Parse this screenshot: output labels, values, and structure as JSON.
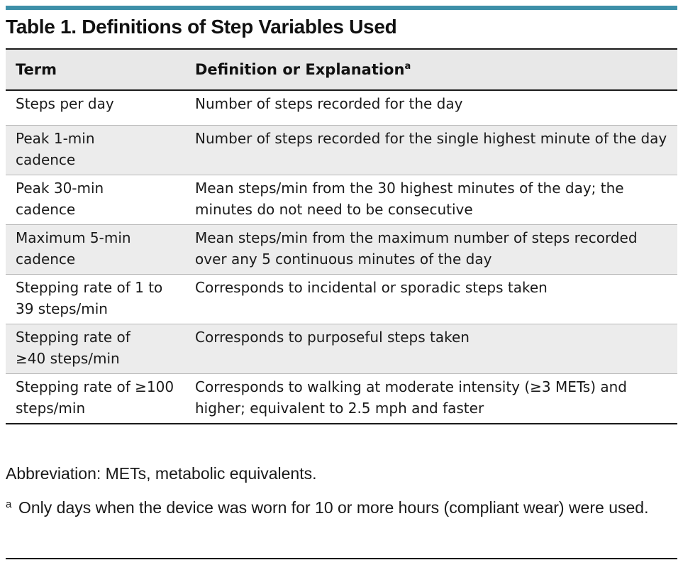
{
  "title": "Table 1. Definitions of Step Variables Used",
  "table": {
    "headers": {
      "term": "Term",
      "definition": "Definition or Explanation",
      "definition_marker": "a"
    },
    "rows": [
      {
        "term": "Steps per day",
        "definition": "Number of steps recorded for the day"
      },
      {
        "term": "Peak 1-min cadence",
        "definition": "Number of steps recorded for the single highest minute of the day"
      },
      {
        "term": "Peak 30-min cadence",
        "definition": "Mean steps/min from the 30 highest minutes of the day; the minutes do not need to be consecutive"
      },
      {
        "term": "Maximum 5-min cadence",
        "definition": "Mean steps/min from the maximum number of steps recorded over any 5 continuous minutes of the day"
      },
      {
        "term": "Stepping rate of 1 to 39 steps/min",
        "definition": "Corresponds to incidental or sporadic steps taken"
      },
      {
        "term": "Stepping rate of ≥40 steps/min",
        "definition": "Corresponds to purposeful steps taken"
      },
      {
        "term": "Stepping rate of ≥100 steps/min",
        "definition": "Corresponds to walking at moderate intensity (≥3 METs) and higher; equivalent to 2.5 mph and faster"
      }
    ]
  },
  "footnotes": {
    "abbreviation": "Abbreviation: METs, metabolic equivalents.",
    "note_marker": "a",
    "note": "Only days when the device was worn for 10 or more hours (compliant wear) were used."
  }
}
